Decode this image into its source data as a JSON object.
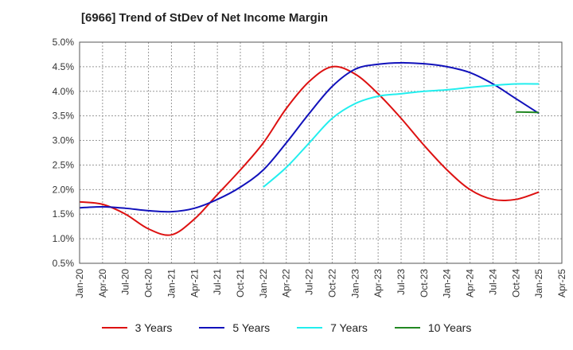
{
  "chart_data": {
    "type": "line",
    "title": "[6966]  Trend of StDev of Net Income Margin",
    "xlabel": "",
    "ylabel": "",
    "x_ticks": [
      "Jan-20",
      "Apr-20",
      "Jul-20",
      "Oct-20",
      "Jan-21",
      "Apr-21",
      "Jul-21",
      "Oct-21",
      "Jan-22",
      "Apr-22",
      "Jul-22",
      "Oct-22",
      "Jan-23",
      "Apr-23",
      "Jul-23",
      "Oct-23",
      "Jan-24",
      "Apr-24",
      "Jul-24",
      "Oct-24",
      "Jan-25",
      "Apr-25"
    ],
    "y_ticks": [
      "0.5%",
      "1.0%",
      "1.5%",
      "2.0%",
      "2.5%",
      "3.0%",
      "3.5%",
      "4.0%",
      "4.5%",
      "5.0%"
    ],
    "ylim": [
      0.5,
      5.0
    ],
    "y_unit": "%",
    "grid": true,
    "legend_position": "bottom",
    "series": [
      {
        "name": "3 Years",
        "color": "#dd1111",
        "x": [
          "Jan-20",
          "Apr-20",
          "Jul-20",
          "Oct-20",
          "Jan-21",
          "Apr-21",
          "Jul-21",
          "Oct-21",
          "Jan-22",
          "Apr-22",
          "Jul-22",
          "Oct-22",
          "Jan-23",
          "Apr-23",
          "Jul-23",
          "Oct-23",
          "Jan-24",
          "Apr-24",
          "Jul-24",
          "Oct-24",
          "Jan-25"
        ],
        "values": [
          1.75,
          1.7,
          1.5,
          1.2,
          1.08,
          1.4,
          1.9,
          2.4,
          2.95,
          3.65,
          4.2,
          4.5,
          4.35,
          3.95,
          3.45,
          2.9,
          2.4,
          2.0,
          1.8,
          1.8,
          1.95
        ]
      },
      {
        "name": "5 Years",
        "color": "#1111bb",
        "x": [
          "Jan-20",
          "Apr-20",
          "Jul-20",
          "Oct-20",
          "Jan-21",
          "Apr-21",
          "Jul-21",
          "Oct-21",
          "Jan-22",
          "Apr-22",
          "Jul-22",
          "Oct-22",
          "Jan-23",
          "Apr-23",
          "Jul-23",
          "Oct-23",
          "Jan-24",
          "Apr-24",
          "Jul-24",
          "Oct-24",
          "Jan-25"
        ],
        "values": [
          1.63,
          1.65,
          1.62,
          1.57,
          1.55,
          1.62,
          1.8,
          2.05,
          2.4,
          2.95,
          3.55,
          4.1,
          4.45,
          4.55,
          4.58,
          4.56,
          4.5,
          4.38,
          4.15,
          3.85,
          3.55
        ]
      },
      {
        "name": "7 Years",
        "color": "#22eeee",
        "x": [
          "Jan-22",
          "Apr-22",
          "Jul-22",
          "Oct-22",
          "Jan-23",
          "Apr-23",
          "Jul-23",
          "Oct-23",
          "Jan-24",
          "Apr-24",
          "Jul-24",
          "Oct-24",
          "Jan-25"
        ],
        "values": [
          2.05,
          2.45,
          2.95,
          3.45,
          3.75,
          3.9,
          3.95,
          4.0,
          4.03,
          4.08,
          4.12,
          4.15,
          4.15
        ]
      },
      {
        "name": "10 Years",
        "color": "#228822",
        "x": [
          "Oct-24",
          "Jan-25"
        ],
        "values": [
          3.58,
          3.57
        ]
      }
    ]
  }
}
